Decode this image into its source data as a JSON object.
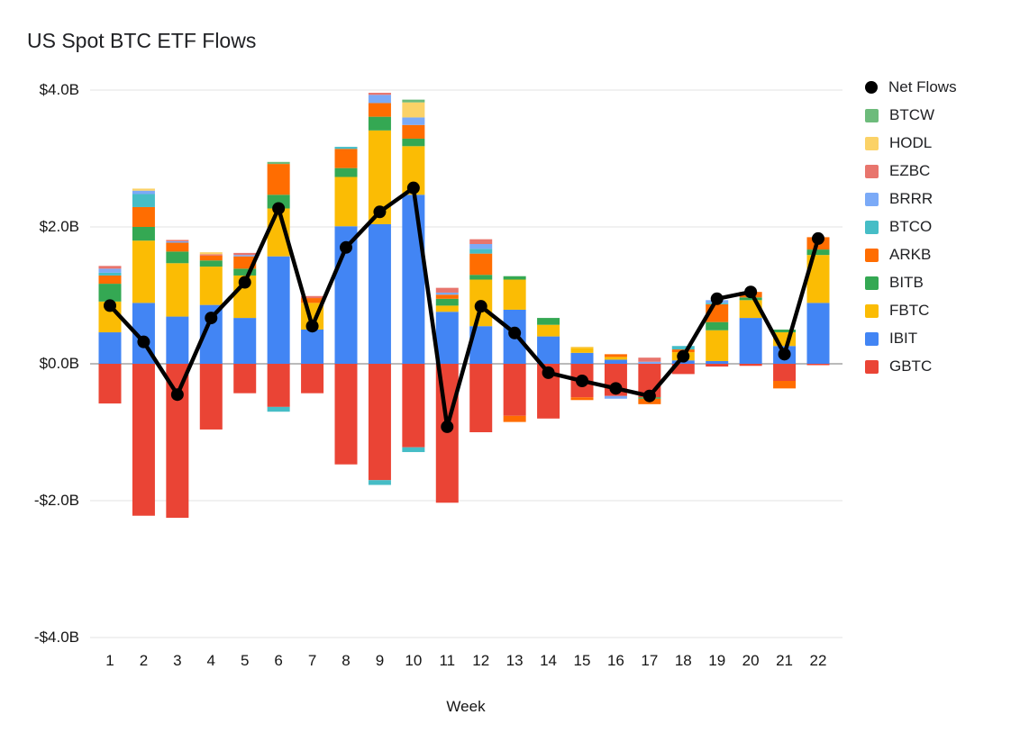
{
  "title": "US Spot BTC ETF Flows",
  "chart_data": {
    "type": "bar",
    "subtype": "stacked-bar-with-net-line",
    "title": "US Spot BTC ETF Flows",
    "xlabel": "Week",
    "ylabel": "",
    "unit": "billions USD",
    "grid": true,
    "legend_position": "right",
    "ylim": [
      -4.0,
      4.0
    ],
    "y_ticks": [
      {
        "value": 4.0,
        "label": "$4.0B"
      },
      {
        "value": 2.0,
        "label": "$2.0B"
      },
      {
        "value": 0.0,
        "label": "$0.0B"
      },
      {
        "value": -2.0,
        "label": "-$2.0B"
      },
      {
        "value": -4.0,
        "label": "-$4.0B"
      }
    ],
    "categories": [
      "1",
      "2",
      "3",
      "4",
      "5",
      "6",
      "7",
      "8",
      "9",
      "10",
      "11",
      "12",
      "13",
      "14",
      "15",
      "16",
      "17",
      "18",
      "19",
      "20",
      "21",
      "22"
    ],
    "series": [
      {
        "name": "GBTC",
        "color": "#ea4435",
        "values": [
          -0.58,
          -2.22,
          -2.25,
          -0.96,
          -0.43,
          -0.63,
          -0.43,
          -1.47,
          -1.7,
          -1.22,
          -2.03,
          -1.0,
          -0.76,
          -0.8,
          -0.49,
          -0.47,
          -0.49,
          -0.15,
          -0.04,
          -0.03,
          -0.25,
          -0.02
        ]
      },
      {
        "name": "IBIT",
        "color": "#4285f4",
        "values": [
          0.46,
          0.89,
          0.69,
          0.86,
          0.67,
          1.57,
          0.5,
          2.01,
          2.04,
          2.47,
          0.76,
          0.55,
          0.79,
          0.4,
          0.16,
          0.06,
          0.0,
          0.05,
          0.04,
          0.67,
          0.26,
          0.89
        ]
      },
      {
        "name": "FBTC",
        "color": "#fbbc04",
        "values": [
          0.45,
          0.91,
          0.78,
          0.56,
          0.62,
          0.7,
          0.39,
          0.72,
          1.37,
          0.71,
          0.09,
          0.68,
          0.44,
          0.17,
          0.07,
          0.04,
          0.0,
          0.12,
          0.45,
          0.26,
          0.2,
          0.7
        ]
      },
      {
        "name": "BITB",
        "color": "#34a853",
        "values": [
          0.26,
          0.2,
          0.17,
          0.09,
          0.1,
          0.2,
          0.0,
          0.13,
          0.2,
          0.11,
          0.1,
          0.07,
          0.05,
          0.1,
          0.0,
          0.0,
          -0.02,
          0.0,
          0.12,
          0.04,
          0.04,
          0.08
        ]
      },
      {
        "name": "ARKB",
        "color": "#ff6d01",
        "values": [
          0.12,
          0.29,
          0.13,
          0.07,
          0.18,
          0.45,
          0.07,
          0.28,
          0.2,
          0.2,
          0.06,
          0.31,
          -0.09,
          0.0,
          -0.04,
          0.04,
          -0.08,
          0.04,
          0.26,
          0.08,
          -0.11,
          0.18
        ]
      },
      {
        "name": "BTCO",
        "color": "#46bdc6",
        "values": [
          0.04,
          0.19,
          0.0,
          0.0,
          0.0,
          -0.07,
          0.0,
          0.03,
          -0.07,
          -0.07,
          0.0,
          0.07,
          0.0,
          0.0,
          0.0,
          0.0,
          0.0,
          0.05,
          0.02,
          0.0,
          0.0,
          0.0
        ]
      },
      {
        "name": "BRRR",
        "color": "#7baaf7",
        "values": [
          0.06,
          0.05,
          0.02,
          0.0,
          0.02,
          0.0,
          0.0,
          0.0,
          0.12,
          0.11,
          0.03,
          0.07,
          0.0,
          0.0,
          0.0,
          -0.04,
          0.03,
          0.0,
          0.04,
          0.0,
          0.0,
          0.0
        ]
      },
      {
        "name": "EZBC",
        "color": "#e8756d",
        "values": [
          0.04,
          0.0,
          0.02,
          0.02,
          0.03,
          0.0,
          0.03,
          0.0,
          0.03,
          0.0,
          0.07,
          0.07,
          0.0,
          0.0,
          0.0,
          0.0,
          0.06,
          0.0,
          0.0,
          0.0,
          0.0,
          0.0
        ]
      },
      {
        "name": "HODL",
        "color": "#fbd267",
        "values": [
          0.0,
          0.03,
          0.0,
          0.03,
          0.0,
          0.0,
          0.0,
          0.0,
          0.0,
          0.22,
          0.0,
          0.0,
          0.0,
          0.0,
          0.02,
          0.0,
          0.0,
          0.0,
          0.0,
          0.0,
          0.0,
          0.0
        ]
      },
      {
        "name": "BTCW",
        "color": "#6dbb7b",
        "values": [
          0.0,
          0.0,
          0.0,
          0.0,
          0.0,
          0.03,
          0.0,
          0.0,
          0.0,
          0.04,
          0.0,
          0.0,
          0.0,
          0.0,
          0.0,
          0.0,
          0.0,
          0.0,
          0.0,
          0.0,
          0.0,
          0.0
        ]
      }
    ],
    "line_series": {
      "name": "Net Flows",
      "color": "#000000",
      "values": [
        0.85,
        0.32,
        -0.45,
        0.67,
        1.19,
        2.27,
        0.55,
        1.7,
        2.22,
        2.57,
        -0.92,
        0.84,
        0.45,
        -0.13,
        -0.25,
        -0.36,
        -0.47,
        0.11,
        0.95,
        1.05,
        0.14,
        1.83
      ]
    },
    "legend": [
      {
        "label": "Net Flows",
        "color": "#000000",
        "shape": "circle"
      },
      {
        "label": "BTCW",
        "color": "#6dbb7b",
        "shape": "square"
      },
      {
        "label": "HODL",
        "color": "#fbd267",
        "shape": "square"
      },
      {
        "label": "EZBC",
        "color": "#e8756d",
        "shape": "square"
      },
      {
        "label": "BRRR",
        "color": "#7baaf7",
        "shape": "square"
      },
      {
        "label": "BTCO",
        "color": "#46bdc6",
        "shape": "square"
      },
      {
        "label": "ARKB",
        "color": "#ff6d01",
        "shape": "square"
      },
      {
        "label": "BITB",
        "color": "#34a853",
        "shape": "square"
      },
      {
        "label": "FBTC",
        "color": "#fbbc04",
        "shape": "square"
      },
      {
        "label": "IBIT",
        "color": "#4285f4",
        "shape": "square"
      },
      {
        "label": "GBTC",
        "color": "#ea4435",
        "shape": "square"
      }
    ],
    "colors": {
      "gridline": "#e3e3e3",
      "zero_line": "#757575",
      "background": "#ffffff",
      "text": "#151515"
    }
  }
}
